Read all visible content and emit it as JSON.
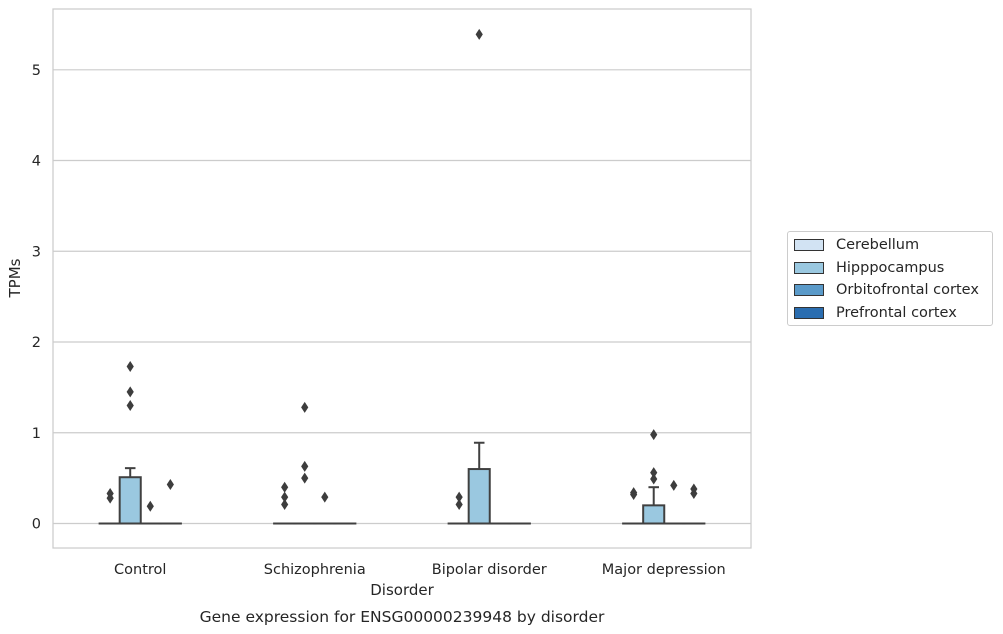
{
  "chart_data": {
    "type": "box",
    "title": "Gene expression for ENSG00000239948 by disorder",
    "xlabel": "Disorder",
    "ylabel": "TPMs",
    "categories": [
      "Control",
      "Schizophrenia",
      "Bipolar disorder",
      "Major depression"
    ],
    "yticks": [
      "0",
      "1",
      "2",
      "3",
      "4",
      "5"
    ],
    "ylim": [
      -0.27,
      5.67
    ],
    "grid": "horizontal",
    "legend_position": "right",
    "series": [
      {
        "name": "Cerebellum",
        "color": "#d2e3f3",
        "boxes": [
          {
            "q1": 0,
            "median": 0,
            "q3": 0,
            "whisker_low": 0,
            "whisker_high": 0,
            "outliers": [
              0.28,
              0.33
            ]
          },
          {
            "q1": 0,
            "median": 0,
            "q3": 0,
            "whisker_low": 0,
            "whisker_high": 0,
            "outliers": [
              0.21,
              0.29,
              0.4
            ]
          },
          {
            "q1": 0,
            "median": 0,
            "q3": 0,
            "whisker_low": 0,
            "whisker_high": 0,
            "outliers": [
              0.21,
              0.29
            ]
          },
          {
            "q1": 0,
            "median": 0,
            "q3": 0,
            "whisker_low": 0,
            "whisker_high": 0,
            "outliers": [
              0.32,
              0.34
            ]
          }
        ]
      },
      {
        "name": "Hipppocampus",
        "color": "#9ac8e0",
        "boxes": [
          {
            "q1": 0,
            "median": 0,
            "q3": 0.51,
            "whisker_low": 0,
            "whisker_high": 0.61,
            "outliers": [
              1.3,
              1.45,
              1.73
            ]
          },
          {
            "q1": 0,
            "median": 0,
            "q3": 0,
            "whisker_low": 0,
            "whisker_high": 0,
            "outliers": [
              0.5,
              0.63,
              1.28
            ]
          },
          {
            "q1": 0,
            "median": 0,
            "q3": 0.6,
            "whisker_low": 0,
            "whisker_high": 0.89,
            "outliers": [
              5.39
            ]
          },
          {
            "q1": 0,
            "median": 0,
            "q3": 0.2,
            "whisker_low": 0,
            "whisker_high": 0.4,
            "outliers": [
              0.49,
              0.56,
              0.98
            ]
          }
        ]
      },
      {
        "name": "Orbitofrontal cortex",
        "color": "#5a9ac9",
        "boxes": [
          {
            "q1": 0,
            "median": 0,
            "q3": 0,
            "whisker_low": 0,
            "whisker_high": 0,
            "outliers": [
              0.19
            ]
          },
          {
            "q1": 0,
            "median": 0,
            "q3": 0,
            "whisker_low": 0,
            "whisker_high": 0,
            "outliers": [
              0.29
            ]
          },
          {
            "q1": 0,
            "median": 0,
            "q3": 0,
            "whisker_low": 0,
            "whisker_high": 0,
            "outliers": []
          },
          {
            "q1": 0,
            "median": 0,
            "q3": 0,
            "whisker_low": 0,
            "whisker_high": 0,
            "outliers": [
              0.42
            ]
          }
        ]
      },
      {
        "name": "Prefrontal cortex",
        "color": "#2a6db0",
        "boxes": [
          {
            "q1": 0,
            "median": 0,
            "q3": 0,
            "whisker_low": 0,
            "whisker_high": 0,
            "outliers": [
              0.43
            ]
          },
          {
            "q1": 0,
            "median": 0,
            "q3": 0,
            "whisker_low": 0,
            "whisker_high": 0,
            "outliers": []
          },
          {
            "q1": 0,
            "median": 0,
            "q3": 0,
            "whisker_low": 0,
            "whisker_high": 0,
            "outliers": []
          },
          {
            "q1": 0,
            "median": 0,
            "q3": 0,
            "whisker_low": 0,
            "whisker_high": 0,
            "outliers": [
              0.33,
              0.38
            ]
          }
        ]
      }
    ]
  }
}
